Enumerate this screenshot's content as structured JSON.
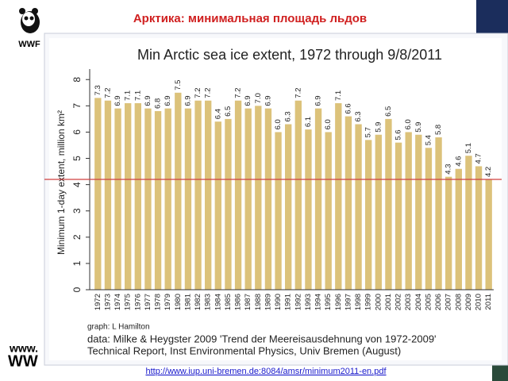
{
  "slide_title": "Арктика: минимальная площадь льдов",
  "logo_text": "WWF",
  "footer_logo": [
    "www.",
    "WW"
  ],
  "source_url": "http://www.iup.uni-bremen.de:8084/amsr/minimum2011-en.pdf",
  "chart_data": {
    "type": "bar",
    "title": "Min Arctic sea ice extent, 1972 through 9/8/2011",
    "y_label": "Minimum 1-day extent, million km²",
    "categories": [
      "1972",
      "1973",
      "1974",
      "1975",
      "1976",
      "1977",
      "1978",
      "1979",
      "1980",
      "1981",
      "1982",
      "1983",
      "1984",
      "1985",
      "1986",
      "1987",
      "1988",
      "1989",
      "1990",
      "1991",
      "1992",
      "1993",
      "1994",
      "1995",
      "1996",
      "1997",
      "1998",
      "1999",
      "2000",
      "2001",
      "2002",
      "2003",
      "2004",
      "2005",
      "2006",
      "2007",
      "2008",
      "2009",
      "2010",
      "2011"
    ],
    "values": [
      7.3,
      7.2,
      6.9,
      7.1,
      7.1,
      6.9,
      6.8,
      6.9,
      7.5,
      6.9,
      7.2,
      7.2,
      6.4,
      6.5,
      7.2,
      6.9,
      7.0,
      6.9,
      6.0,
      6.3,
      7.2,
      6.1,
      6.9,
      6.0,
      7.1,
      6.6,
      6.3,
      5.7,
      5.9,
      6.5,
      5.6,
      6.0,
      5.9,
      5.4,
      5.8,
      4.3,
      4.6,
      5.1,
      4.7,
      4.2
    ],
    "value_labels": [
      "7.3",
      "7.2",
      "6.9",
      "7.1",
      "7.1",
      "6.9",
      "6.8",
      "6.9",
      "7.5",
      "6.9",
      "7.2",
      "7.2",
      "6.4",
      "6.5",
      "7.2",
      "6.9",
      "7.0",
      "6.9",
      "6.0",
      "6.3",
      "7.2",
      "6.1",
      "6.9",
      "6.0",
      "7.1",
      "6.6",
      "6.3",
      "5.7",
      "5.9",
      "6.5",
      "5.6",
      "6.0",
      "5.9",
      "5.4",
      "5.8",
      "4.3",
      "4.6",
      "5.1",
      "4.7",
      "4.2"
    ],
    "color": "#dcc27a",
    "reference_line_color": "#d04040",
    "ylim": [
      0,
      8.4
    ],
    "yticks": [
      0,
      1,
      2,
      3,
      4,
      5,
      6,
      7,
      8
    ],
    "grid": false,
    "notes": [
      "graph:  L Hamilton",
      "data: Milke & Heygster 2009 'Trend der Meereisausdehnung von 1972-2009'",
      "Technical Report, Inst Environmental Physics, Univ Bremen (August)"
    ]
  }
}
